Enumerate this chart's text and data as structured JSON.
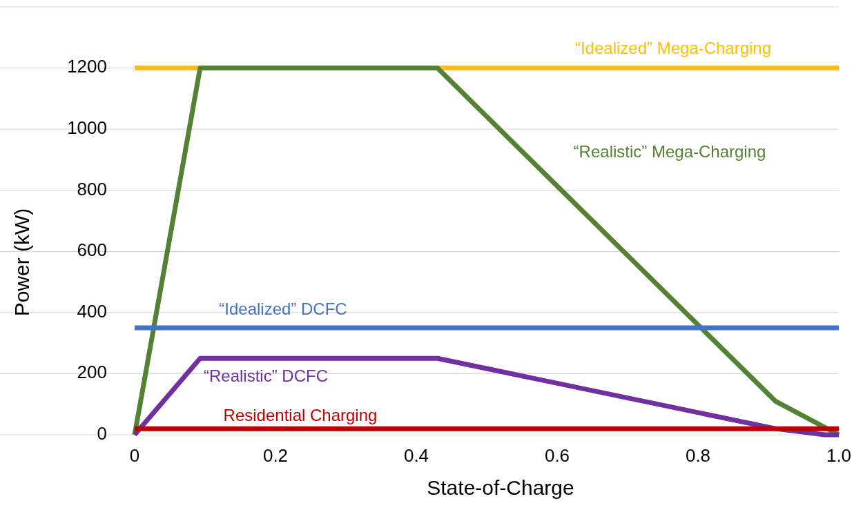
{
  "chart_data": {
    "type": "line",
    "xlabel": "State-of-Charge",
    "ylabel": "Power (kW)",
    "xlim": [
      0,
      1
    ],
    "xticks": [
      0,
      0.2,
      0.4,
      0.6,
      0.8,
      {
        "value": 1,
        "label": "1.0"
      }
    ],
    "ylim": [
      0,
      1400
    ],
    "yticks": [
      0,
      200,
      400,
      600,
      800,
      1000,
      1200,
      {
        "value": 1400,
        "label": null
      }
    ],
    "grid": "y",
    "marker": "none",
    "line_style": "solid",
    "series": [
      {
        "name": "“Idealized” Mega-Charging",
        "color": "#ffc000",
        "x": [
          0,
          1
        ],
        "values": [
          1200,
          1200
        ]
      },
      {
        "name": "“Realistic” Mega-Charging",
        "color": "#548235",
        "x": [
          0,
          0.093,
          0.43,
          0.91,
          1
        ],
        "values": [
          0,
          1200,
          1200,
          110,
          0
        ]
      },
      {
        "name": "“Idealized” DCFC",
        "color": "#4472c4",
        "x": [
          0,
          1
        ],
        "values": [
          350,
          350
        ]
      },
      {
        "name": "“Realistic” DCFC",
        "color": "#7030a0",
        "x": [
          0,
          0.093,
          0.43,
          0.91,
          0.98,
          1
        ],
        "values": [
          0,
          250,
          250,
          20,
          0,
          0
        ]
      },
      {
        "name": "Residential Charging",
        "color": "#c00000",
        "x": [
          0,
          1
        ],
        "values": [
          20,
          20
        ]
      }
    ]
  }
}
